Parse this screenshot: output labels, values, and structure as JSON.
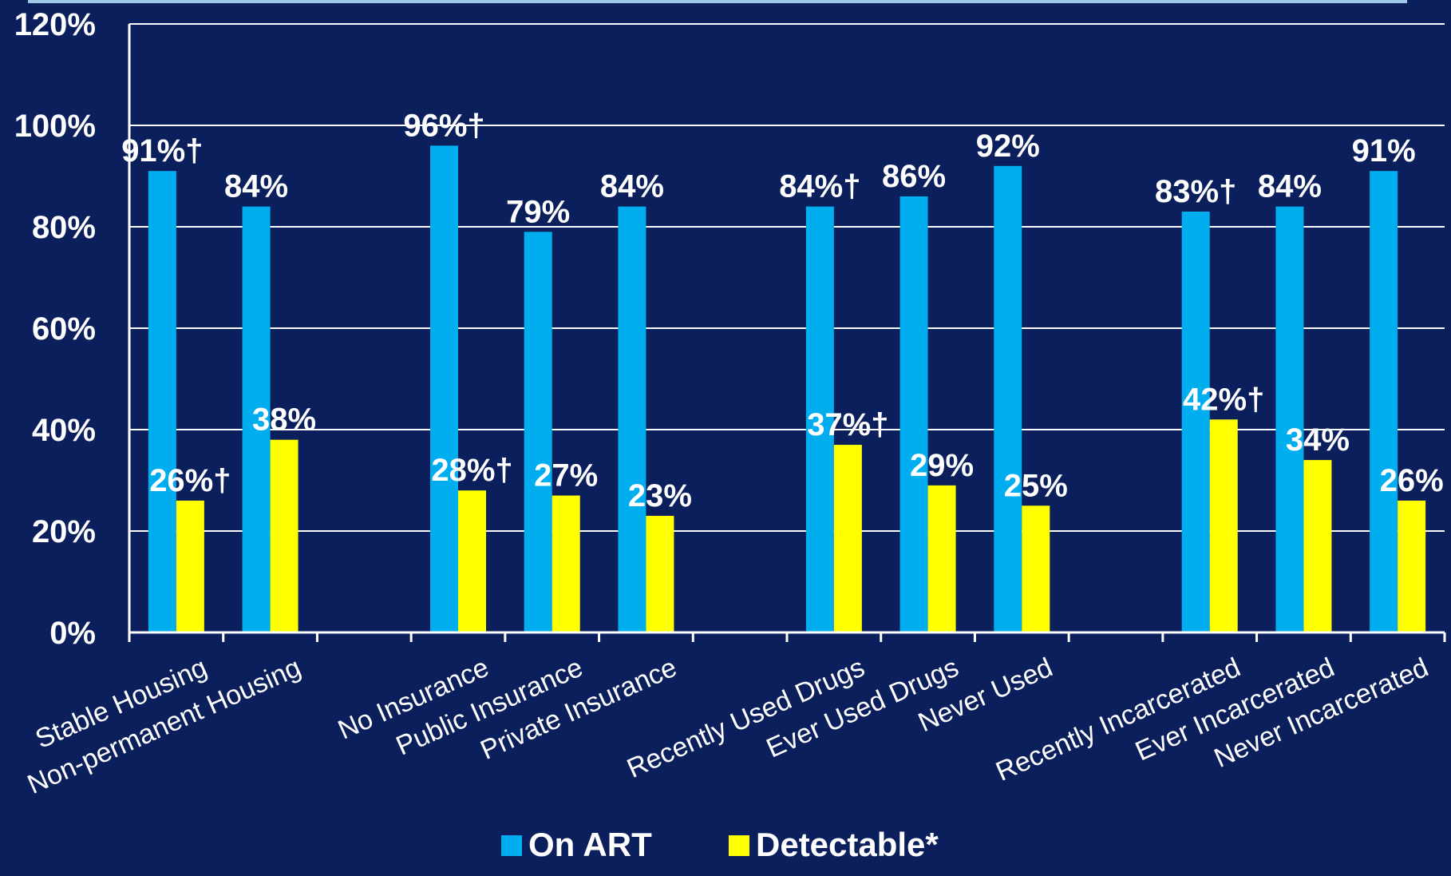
{
  "chart_data": {
    "type": "bar",
    "title": "",
    "xlabel": "",
    "ylabel": "",
    "ylim": [
      0,
      120
    ],
    "y_ticks": [
      "0%",
      "20%",
      "40%",
      "60%",
      "80%",
      "100%",
      "120%"
    ],
    "y_tick_values": [
      0,
      20,
      40,
      60,
      80,
      100,
      120
    ],
    "grid": true,
    "legend_position": "bottom",
    "slots": [
      "Stable Housing",
      "Non-permanent Housing",
      "",
      "No Insurance",
      "Public Insurance",
      "Private Insurance",
      "",
      "Recently Used Drugs",
      "Ever Used Drugs",
      "Never Used",
      "",
      "Recently Incarcerated",
      "Ever Incarcerated",
      "Never Incarcerated"
    ],
    "series": [
      {
        "name": "On ART",
        "color": "#00aeef",
        "values": [
          91,
          84,
          null,
          96,
          79,
          84,
          null,
          84,
          86,
          92,
          null,
          83,
          84,
          91
        ],
        "labels": [
          "91%†",
          "84%",
          "",
          "96%†",
          "79%",
          "84%",
          "",
          "84%†",
          "86%",
          "92%",
          "",
          "83%†",
          "84%",
          "91%"
        ]
      },
      {
        "name": "Detectable*",
        "color": "#ffff00",
        "values": [
          26,
          38,
          null,
          28,
          27,
          23,
          null,
          37,
          29,
          25,
          null,
          42,
          34,
          26
        ],
        "labels": [
          "26%†",
          "38%",
          "",
          "28%†",
          "27%",
          "23%",
          "",
          "37%†",
          "29%",
          "25%",
          "",
          "42%†",
          "34%",
          "26%"
        ]
      }
    ]
  }
}
